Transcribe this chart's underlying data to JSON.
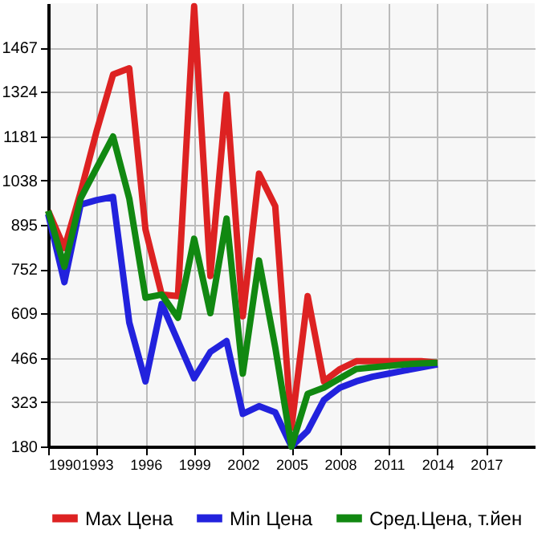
{
  "chart_data": {
    "type": "line",
    "x": [
      1990,
      1991,
      1992,
      1993,
      1994,
      1995,
      1996,
      1997,
      1998,
      1999,
      2000,
      2001,
      2002,
      2003,
      2004,
      2005,
      2006,
      2007,
      2008,
      2009,
      2010,
      2011,
      2012,
      2013,
      2014
    ],
    "series": [
      {
        "name": "Max Цена",
        "color": "#dd2222",
        "values": [
          940,
          820,
          1000,
          1200,
          1380,
          1400,
          880,
          670,
          665,
          1600,
          730,
          1315,
          600,
          1060,
          955,
          240,
          665,
          390,
          430,
          455,
          455,
          455,
          455,
          455,
          450
        ]
      },
      {
        "name": "Min Цена",
        "color": "#2222dd",
        "values": [
          930,
          710,
          960,
          975,
          985,
          580,
          390,
          640,
          520,
          400,
          485,
          520,
          285,
          310,
          290,
          180,
          230,
          330,
          370,
          390,
          405,
          415,
          425,
          435,
          445
        ]
      },
      {
        "name": "Сред.Цена, т.йен",
        "color": "#118811",
        "values": [
          940,
          760,
          980,
          1080,
          1180,
          980,
          660,
          670,
          595,
          850,
          610,
          915,
          415,
          780,
          500,
          180,
          350,
          370,
          400,
          430,
          435,
          440,
          445,
          448,
          450
        ]
      }
    ],
    "xlim": [
      1990,
      2020
    ],
    "xticks": [
      1990,
      1993,
      1996,
      1999,
      2002,
      2005,
      2008,
      2011,
      2014,
      2017
    ],
    "ylim": [
      180,
      1610
    ],
    "yticks": [
      180,
      323,
      466,
      609,
      752,
      895,
      1038,
      1181,
      1324,
      1467
    ],
    "grid": true,
    "legend": "bottom",
    "marker": "none",
    "line_style": "solid"
  }
}
